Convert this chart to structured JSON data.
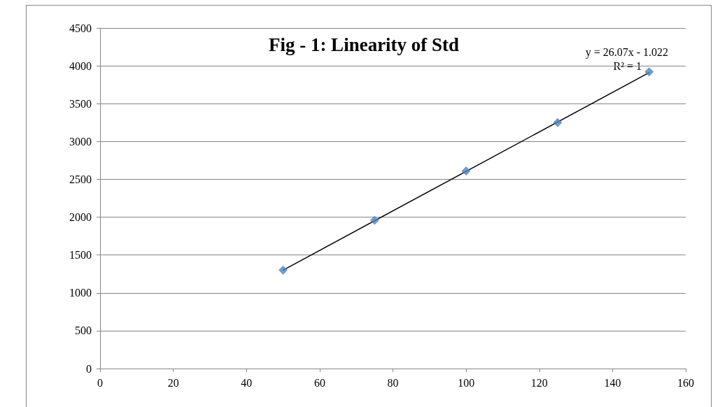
{
  "chart_data": {
    "type": "scatter",
    "title": "Fig - 1: Linearity of Std",
    "x": [
      50,
      75,
      100,
      125,
      150
    ],
    "series": [
      {
        "color": "#4f81bd",
        "values": [
          1300,
          1960,
          2610,
          3250,
          3920
        ],
        "marker": "diamond"
      },
      {
        "type": "line",
        "color": "#000000",
        "x": [
          50,
          150
        ],
        "values": [
          1300,
          3910
        ],
        "marker": "none",
        "line_style": "solid"
      }
    ],
    "xlim": [
      0,
      160
    ],
    "xticks": [
      0,
      20,
      40,
      60,
      80,
      100,
      120,
      140,
      160
    ],
    "ylim": [
      0,
      4500
    ],
    "yticks": [
      0,
      500,
      1000,
      1500,
      2000,
      2500,
      3000,
      3500,
      4000,
      4500
    ],
    "grid": "y",
    "annotations": [
      "y = 26.07x - 1.022",
      "R² = 1"
    ]
  }
}
